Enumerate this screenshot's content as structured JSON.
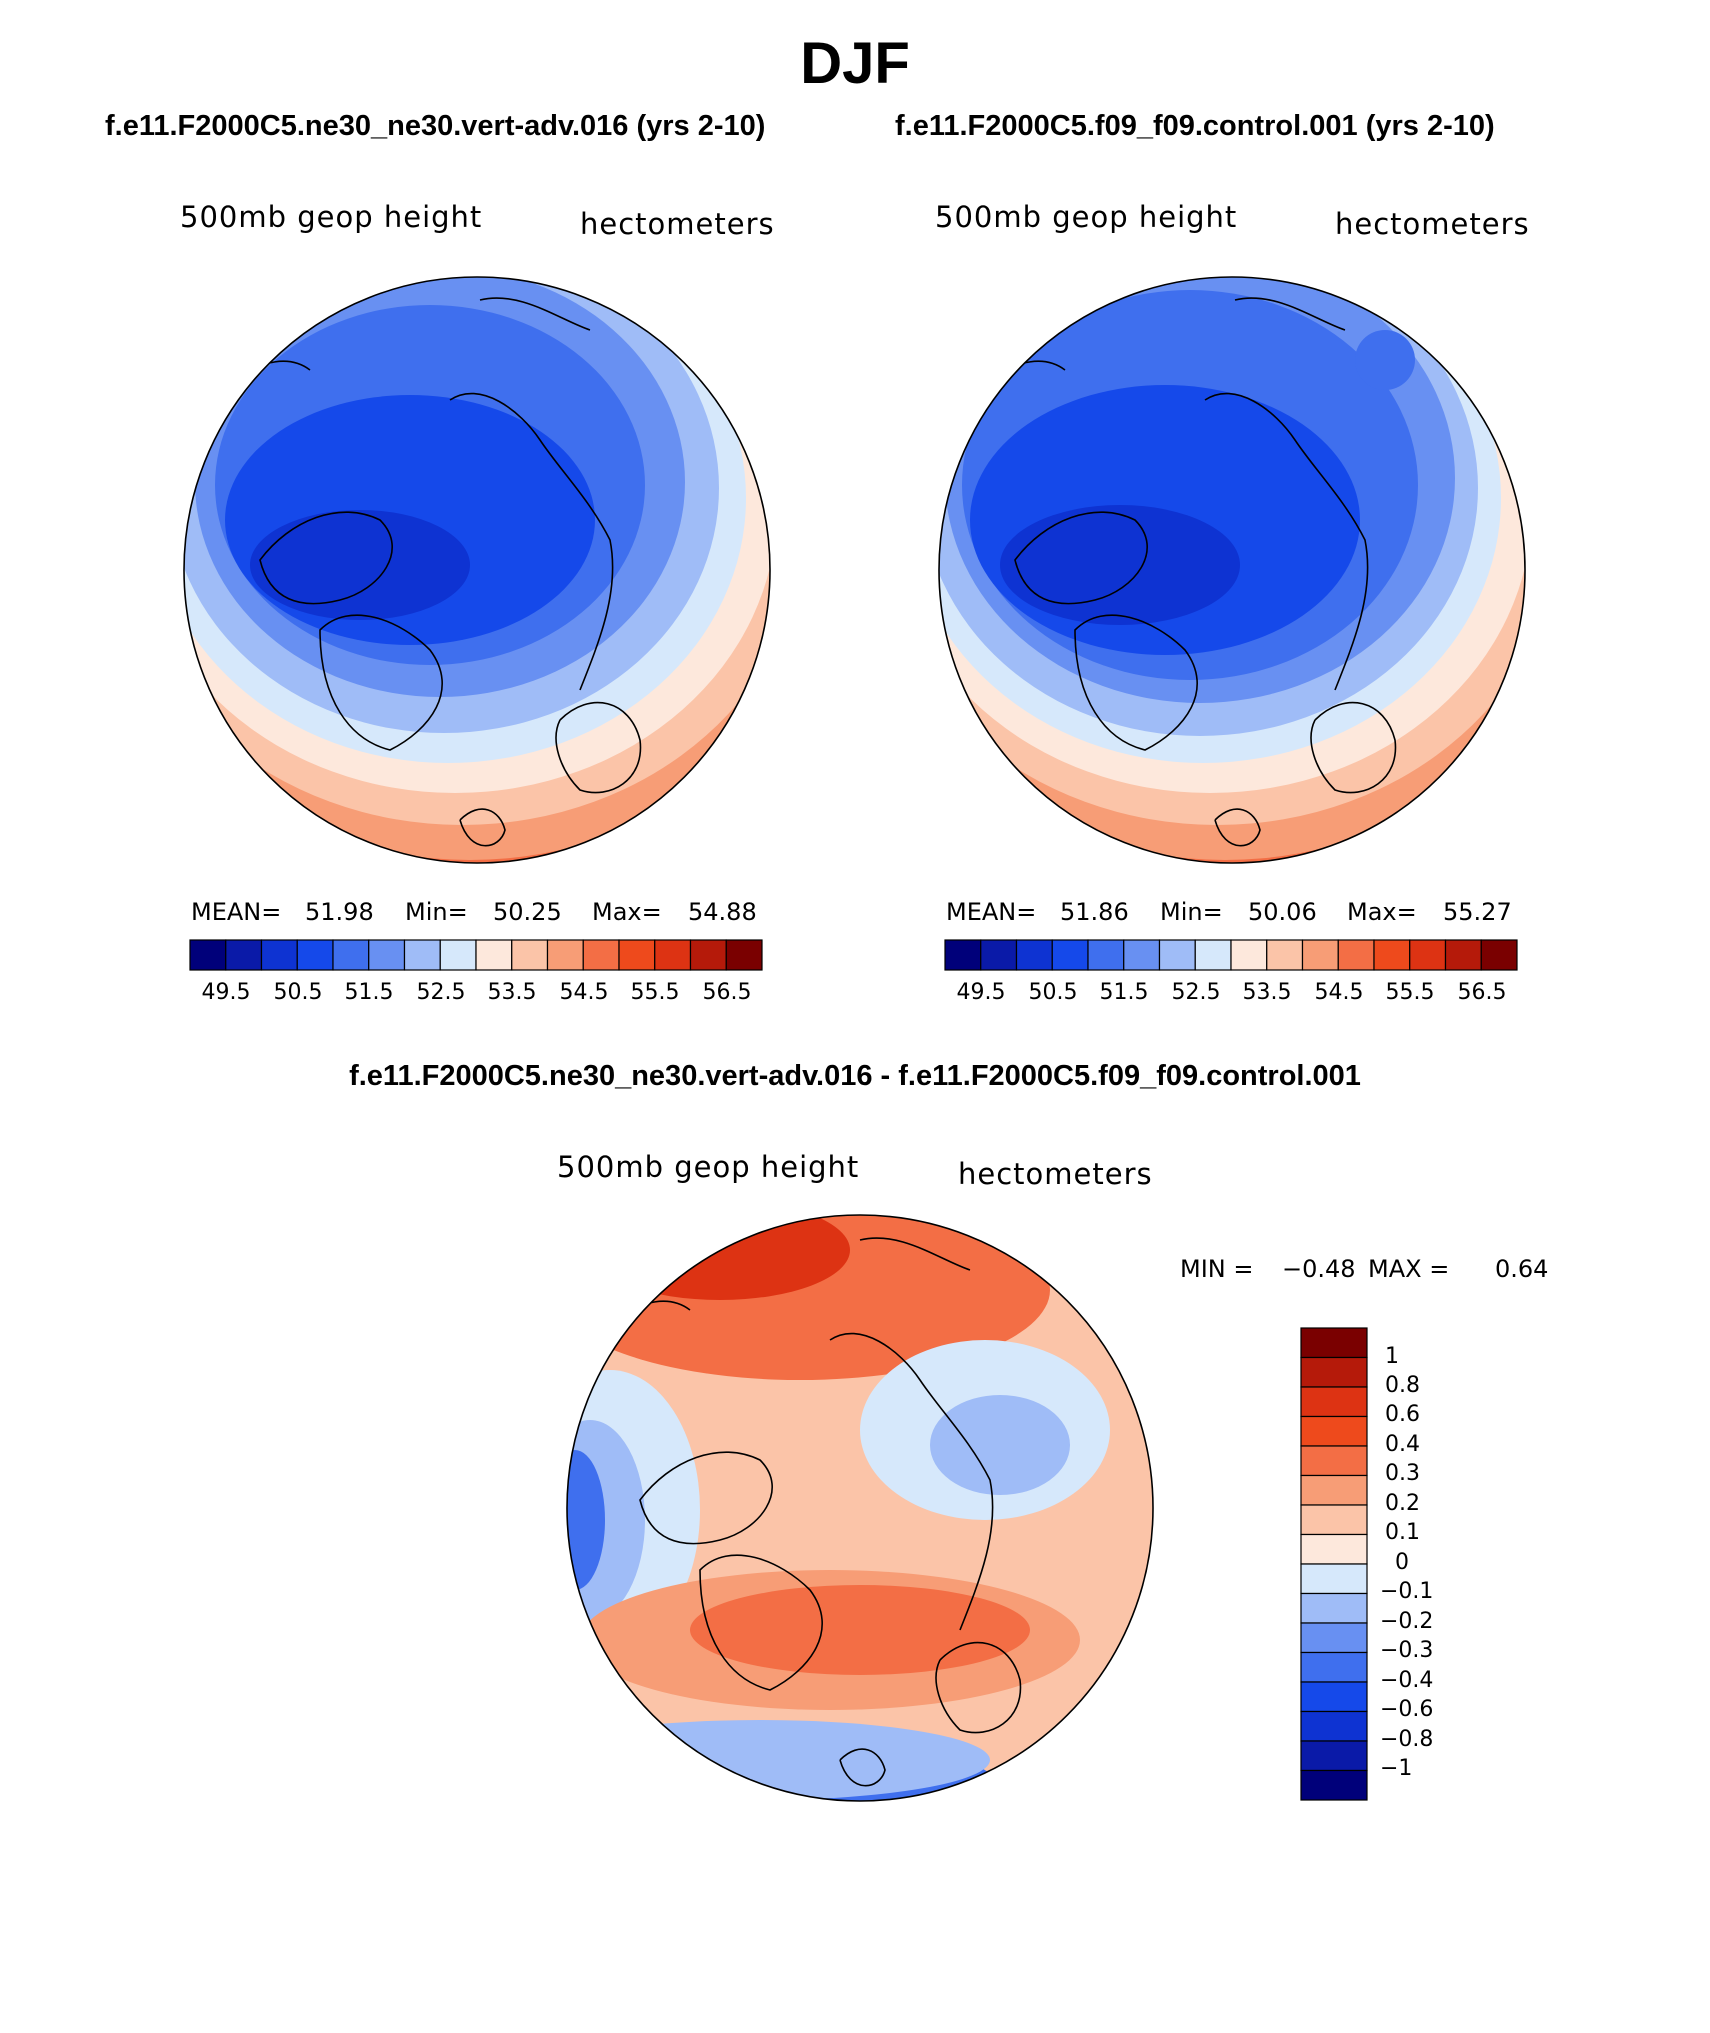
{
  "season": "DJF",
  "palette_abs": [
    "#00007a",
    "#0a1aa8",
    "#0e33d2",
    "#1549ea",
    "#3f6fee",
    "#6890f2",
    "#9fbcf7",
    "#d6e8fb",
    "#fde8dc",
    "#fbc4a8",
    "#f79d76",
    "#f36e45",
    "#ee4a1c",
    "#dd3313",
    "#b51a0a",
    "#7a0000"
  ],
  "palette_diff": [
    "#00007a",
    "#0a1aa8",
    "#0e33d2",
    "#1549ea",
    "#3f6fee",
    "#6890f2",
    "#9fbcf7",
    "#d6e8fb",
    "#fde8dc",
    "#fbc4a8",
    "#f79d76",
    "#f36e45",
    "#ee4a1c",
    "#dd3313",
    "#b51a0a",
    "#7a0000"
  ],
  "panels": [
    {
      "case": "f.e11.F2000C5.ne30_ne30.vert-adv.016 (yrs 2-10)",
      "variable": "500mb geop height",
      "units": "hectometers",
      "mean_label": "MEAN=",
      "mean": "51.98",
      "min_label": "Min=",
      "min": "50.25",
      "max_label": "Max=",
      "max": "54.88",
      "ticks": [
        "49.5",
        "50.5",
        "51.5",
        "52.5",
        "53.5",
        "54.5",
        "55.5",
        "56.5"
      ]
    },
    {
      "case": "f.e11.F2000C5.f09_f09.control.001 (yrs 2-10)",
      "variable": "500mb geop height",
      "units": "hectometers",
      "mean_label": "MEAN=",
      "mean": "51.86",
      "min_label": "Min=",
      "min": "50.06",
      "max_label": "Max=",
      "max": "55.27",
      "ticks": [
        "49.5",
        "50.5",
        "51.5",
        "52.5",
        "53.5",
        "54.5",
        "55.5",
        "56.5"
      ]
    }
  ],
  "diff": {
    "title": "f.e11.F2000C5.ne30_ne30.vert-adv.016 - f.e11.F2000C5.f09_f09.control.001",
    "variable": "500mb geop height",
    "units": "hectometers",
    "min_label": "MIN =",
    "min": "−0.48",
    "max_label": "MAX =",
    "max": "0.64",
    "ticks": [
      "1",
      "0.8",
      "0.6",
      "0.4",
      "0.3",
      "0.2",
      "0.1",
      "0",
      "−0.1",
      "−0.2",
      "−0.3",
      "−0.4",
      "−0.6",
      "−0.8",
      "−1"
    ]
  }
}
